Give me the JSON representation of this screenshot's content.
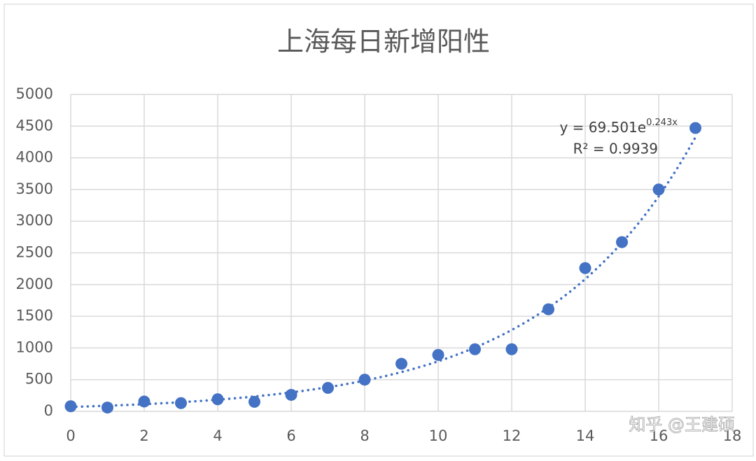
{
  "chart_data": {
    "type": "scatter",
    "title": "上海每日新增阳性",
    "x": [
      0,
      1,
      2,
      3,
      4,
      5,
      6,
      7,
      8,
      9,
      10,
      11,
      12,
      13,
      14,
      15,
      16,
      17
    ],
    "series": [
      {
        "name": "",
        "color": "#4472c4",
        "values": [
          80,
          60,
          155,
          130,
          190,
          150,
          260,
          370,
          500,
          750,
          890,
          980,
          980,
          1610,
          2260,
          2670,
          3500,
          4470
        ]
      }
    ],
    "xlim": [
      0,
      18
    ],
    "xticks": [
      0,
      2,
      4,
      6,
      8,
      10,
      12,
      14,
      16,
      18
    ],
    "ylim": [
      0,
      5000
    ],
    "yticks": [
      0,
      500,
      1000,
      1500,
      2000,
      2500,
      3000,
      3500,
      4000,
      4500,
      5000
    ],
    "grid": true,
    "trendline": {
      "type": "exponential",
      "a": 69.501,
      "b": 0.243,
      "color": "#4472c4",
      "label": "y = 69.501e",
      "exponent_label": "0.243x",
      "r2_label": "R² = 0.9939"
    },
    "watermark": "知乎 @王建硕"
  }
}
